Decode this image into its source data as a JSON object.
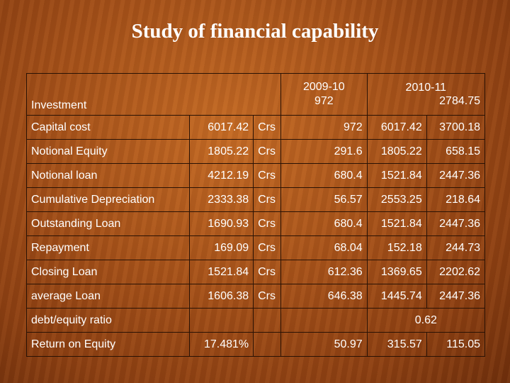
{
  "title": "Study of financial capability",
  "header": {
    "label": "Investment",
    "y1_year": "2009-10",
    "y1_value": "972",
    "y2_year": "2010-11",
    "y2_value": "2784.75"
  },
  "rows": [
    {
      "label": "Capital cost",
      "value": "6017.42",
      "unit": "Crs",
      "y1": "972",
      "y2a": "6017.42",
      "y2b": "3700.18"
    },
    {
      "label": "Notional Equity",
      "value": "1805.22",
      "unit": "Crs",
      "y1": "291.6",
      "y2a": "1805.22",
      "y2b": "658.15"
    },
    {
      "label": "Notional loan",
      "value": "4212.19",
      "unit": "Crs",
      "y1": "680.4",
      "y2a": "1521.84",
      "y2b": "2447.36"
    },
    {
      "label": "Cumulative Depreciation",
      "value": "2333.38",
      "unit": "Crs",
      "y1": "56.57",
      "y2a": "2553.25",
      "y2b": "218.64"
    },
    {
      "label": "Outstanding Loan",
      "value": "1690.93",
      "unit": "Crs",
      "y1": "680.4",
      "y2a": "1521.84",
      "y2b": "2447.36"
    },
    {
      "label": "Repayment",
      "value": "169.09",
      "unit": "Crs",
      "y1": "68.04",
      "y2a": "152.18",
      "y2b": "244.73"
    },
    {
      "label": "Closing Loan",
      "value": "1521.84",
      "unit": "Crs",
      "y1": "612.36",
      "y2a": "1369.65",
      "y2b": "2202.62"
    },
    {
      "label": "average Loan",
      "value": "1606.38",
      "unit": "Crs",
      "y1": "646.38",
      "y2a": "1445.74",
      "y2b": "2447.36"
    }
  ],
  "ratio_row": {
    "label": "debt/equity ratio",
    "value": "0.62"
  },
  "roe_row": {
    "label": "Return on Equity",
    "value": "17.481%",
    "y1": "50.97",
    "y2a": "315.57",
    "y2b": "115.05"
  }
}
